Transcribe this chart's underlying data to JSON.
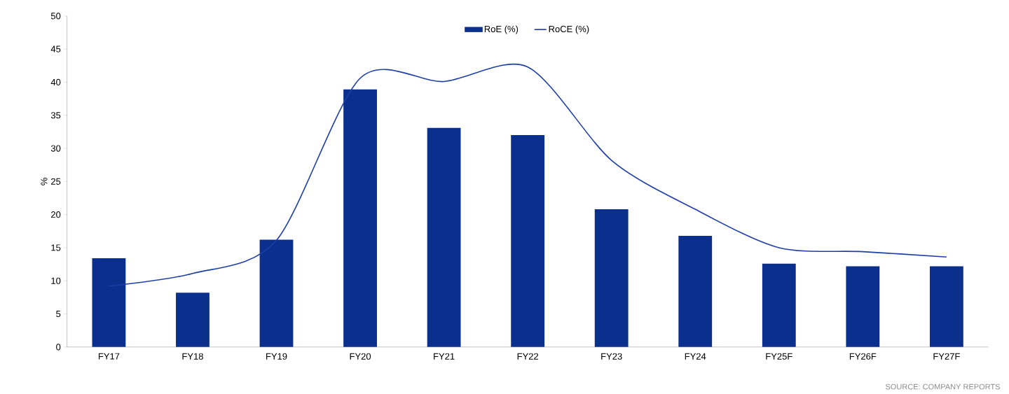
{
  "chart_data": {
    "type": "bar",
    "ylabel": "%",
    "categories": [
      "FY17",
      "FY18",
      "FY19",
      "FY20",
      "FY21",
      "FY22",
      "FY23",
      "FY24",
      "FY25F",
      "FY26F",
      "FY27F"
    ],
    "series": [
      {
        "name": "RoE (%)",
        "color": "#0a2f8c",
        "values": [
          13.4,
          8.2,
          16.2,
          38.9,
          33.1,
          32.0,
          20.8,
          16.8,
          12.6,
          12.2,
          12.2
        ]
      },
      {
        "name": "RoCE (%)",
        "type": "line",
        "color": "#1f3fa8",
        "values": [
          9.2,
          11.1,
          16.1,
          40.6,
          40.1,
          42.3,
          28.2,
          20.8,
          15.0,
          14.4,
          13.6
        ]
      }
    ],
    "ylim": [
      0,
      50
    ],
    "yticks": [
      0,
      5,
      10,
      15,
      20,
      25,
      30,
      35,
      40,
      45,
      50
    ],
    "grid": false,
    "legend": "top",
    "marker": "none",
    "line_style": "solid",
    "annotations": [
      "SOURCE: COMPANY REPORTS"
    ]
  }
}
